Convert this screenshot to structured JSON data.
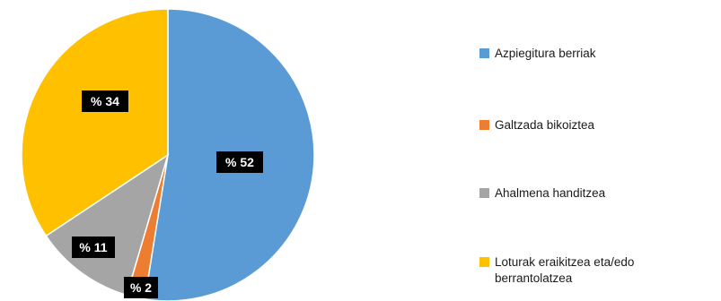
{
  "chart_data": {
    "type": "pie",
    "start_angle_deg": 0,
    "direction": "clockwise",
    "slices": [
      {
        "label": "Azpiegitura berriak",
        "value": 52,
        "data_label": "% 52",
        "color": "#5B9BD5"
      },
      {
        "label": "Galtzada bikoiztea",
        "value": 2,
        "data_label": "% 2",
        "color": "#ED7D31"
      },
      {
        "label": "Ahalmena handitzea",
        "value": 11,
        "data_label": "% 11",
        "color": "#A5A5A5"
      },
      {
        "label": "Loturak eraikitzea eta/edo\nberrantolatzea",
        "value": 34,
        "data_label": "% 34",
        "color": "#FFC000"
      }
    ],
    "legend_position": "right",
    "data_label_style": {
      "background": "#000000",
      "color": "#ffffff"
    }
  }
}
